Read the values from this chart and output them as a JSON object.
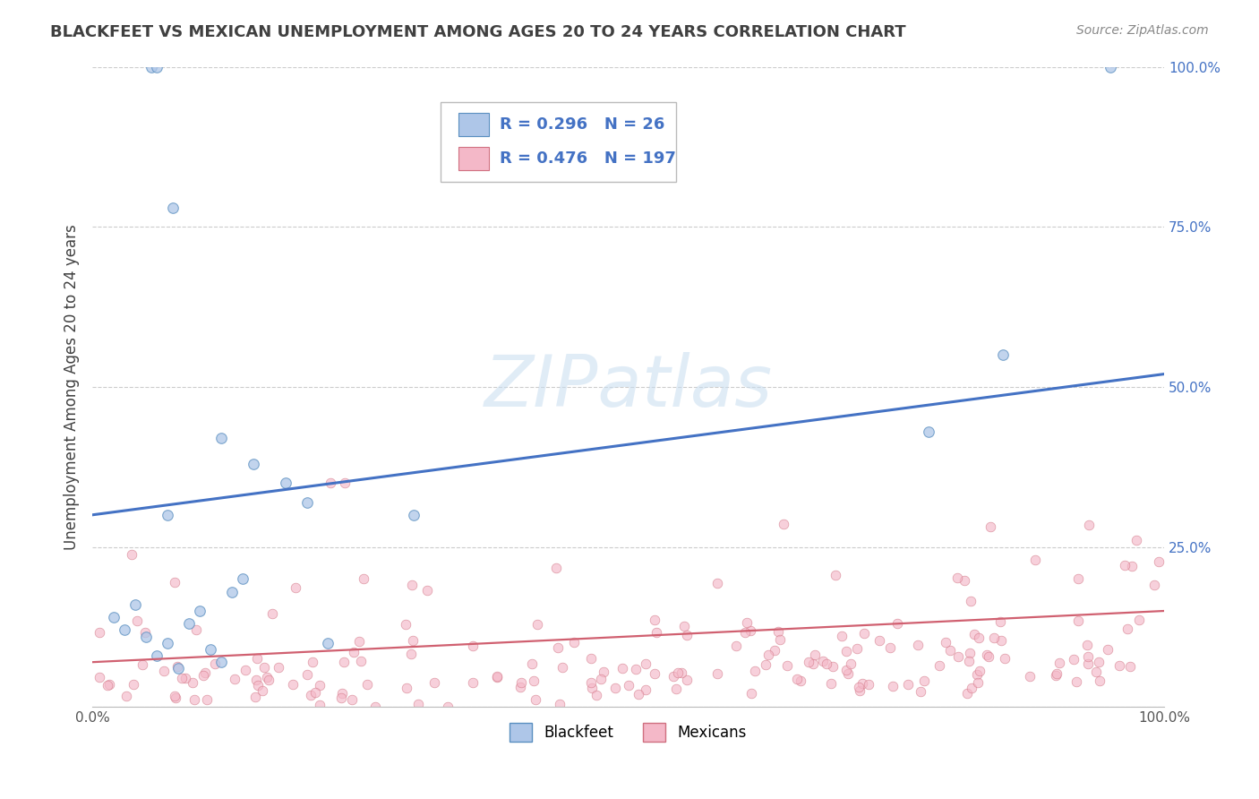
{
  "title": "BLACKFEET VS MEXICAN UNEMPLOYMENT AMONG AGES 20 TO 24 YEARS CORRELATION CHART",
  "source": "Source: ZipAtlas.com",
  "ylabel": "Unemployment Among Ages 20 to 24 years",
  "watermark": "ZIPatlas",
  "blackfeet_R": 0.296,
  "blackfeet_N": 26,
  "mexican_R": 0.476,
  "mexican_N": 197,
  "blackfeet_color": "#aec6e8",
  "blackfeet_edge_color": "#5a8fc0",
  "blackfeet_line_color": "#4472c4",
  "mexican_color": "#f4b8c8",
  "mexican_edge_color": "#d07080",
  "mexican_line_color": "#d06070",
  "legend_text_color": "#4472c4",
  "background_color": "#ffffff",
  "grid_color": "#cccccc",
  "title_color": "#404040",
  "xlim": [
    0.0,
    1.0
  ],
  "ylim": [
    0.0,
    1.0
  ],
  "xticks": [
    0.0,
    0.25,
    0.5,
    0.75,
    1.0
  ],
  "xtick_labels": [
    "0.0%",
    "",
    "",
    "",
    "100.0%"
  ],
  "yticks": [
    0.0,
    0.25,
    0.5,
    0.75,
    1.0
  ],
  "ytick_labels": [
    "",
    "25.0%",
    "50.0%",
    "75.0%",
    "100.0%"
  ],
  "bf_trend_start": 0.3,
  "bf_trend_end": 0.52,
  "mx_trend_start": 0.07,
  "mx_trend_end": 0.15,
  "marker_size": 70
}
